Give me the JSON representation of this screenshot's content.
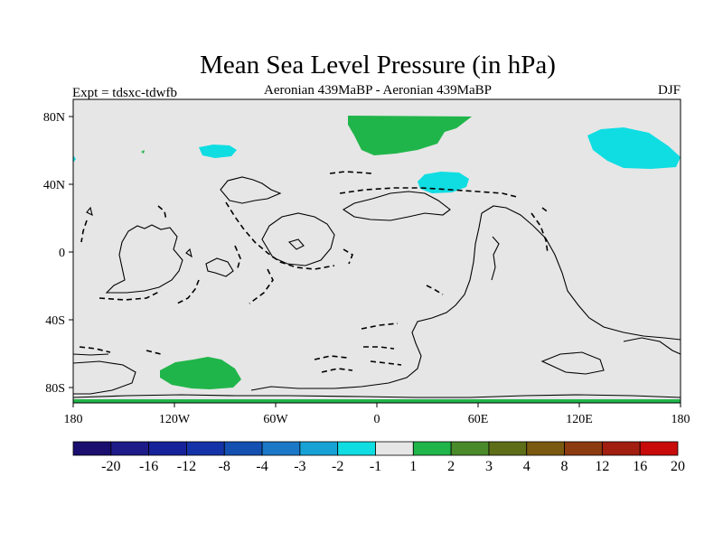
{
  "title": "Mean Sea Level Pressure (in hPa)",
  "experiment": "Expt = tdsxc-tdwfb",
  "comparison": "Aeronian 439MaBP - Aeronian 439MaBP",
  "season": "DJF",
  "lat_labels": [
    "80N",
    "40N",
    "0",
    "40S",
    "80S"
  ],
  "lon_labels": [
    "180",
    "120W",
    "60W",
    "0",
    "60E",
    "120E",
    "180"
  ],
  "colorbar": {
    "labels": [
      "-20",
      "-16",
      "-12",
      "-8",
      "-4",
      "-3",
      "-2",
      "-1",
      "1",
      "2",
      "3",
      "4",
      "8",
      "12",
      "16",
      "20"
    ],
    "colors": [
      "#1a0f6e",
      "#1d1b88",
      "#16229a",
      "#1533a8",
      "#1450b2",
      "#1b78c6",
      "#17a2d6",
      "#0fdde2",
      "#e6e6e6",
      "#20b54a",
      "#4a8a2a",
      "#5e6e18",
      "#7a5a10",
      "#8c3a10",
      "#a11e10",
      "#c80a0a"
    ]
  },
  "colors": {
    "ocean_background": "#e6e6e6",
    "negative_anomaly": "#0fdde2",
    "positive_anomaly": "#20b54a"
  }
}
